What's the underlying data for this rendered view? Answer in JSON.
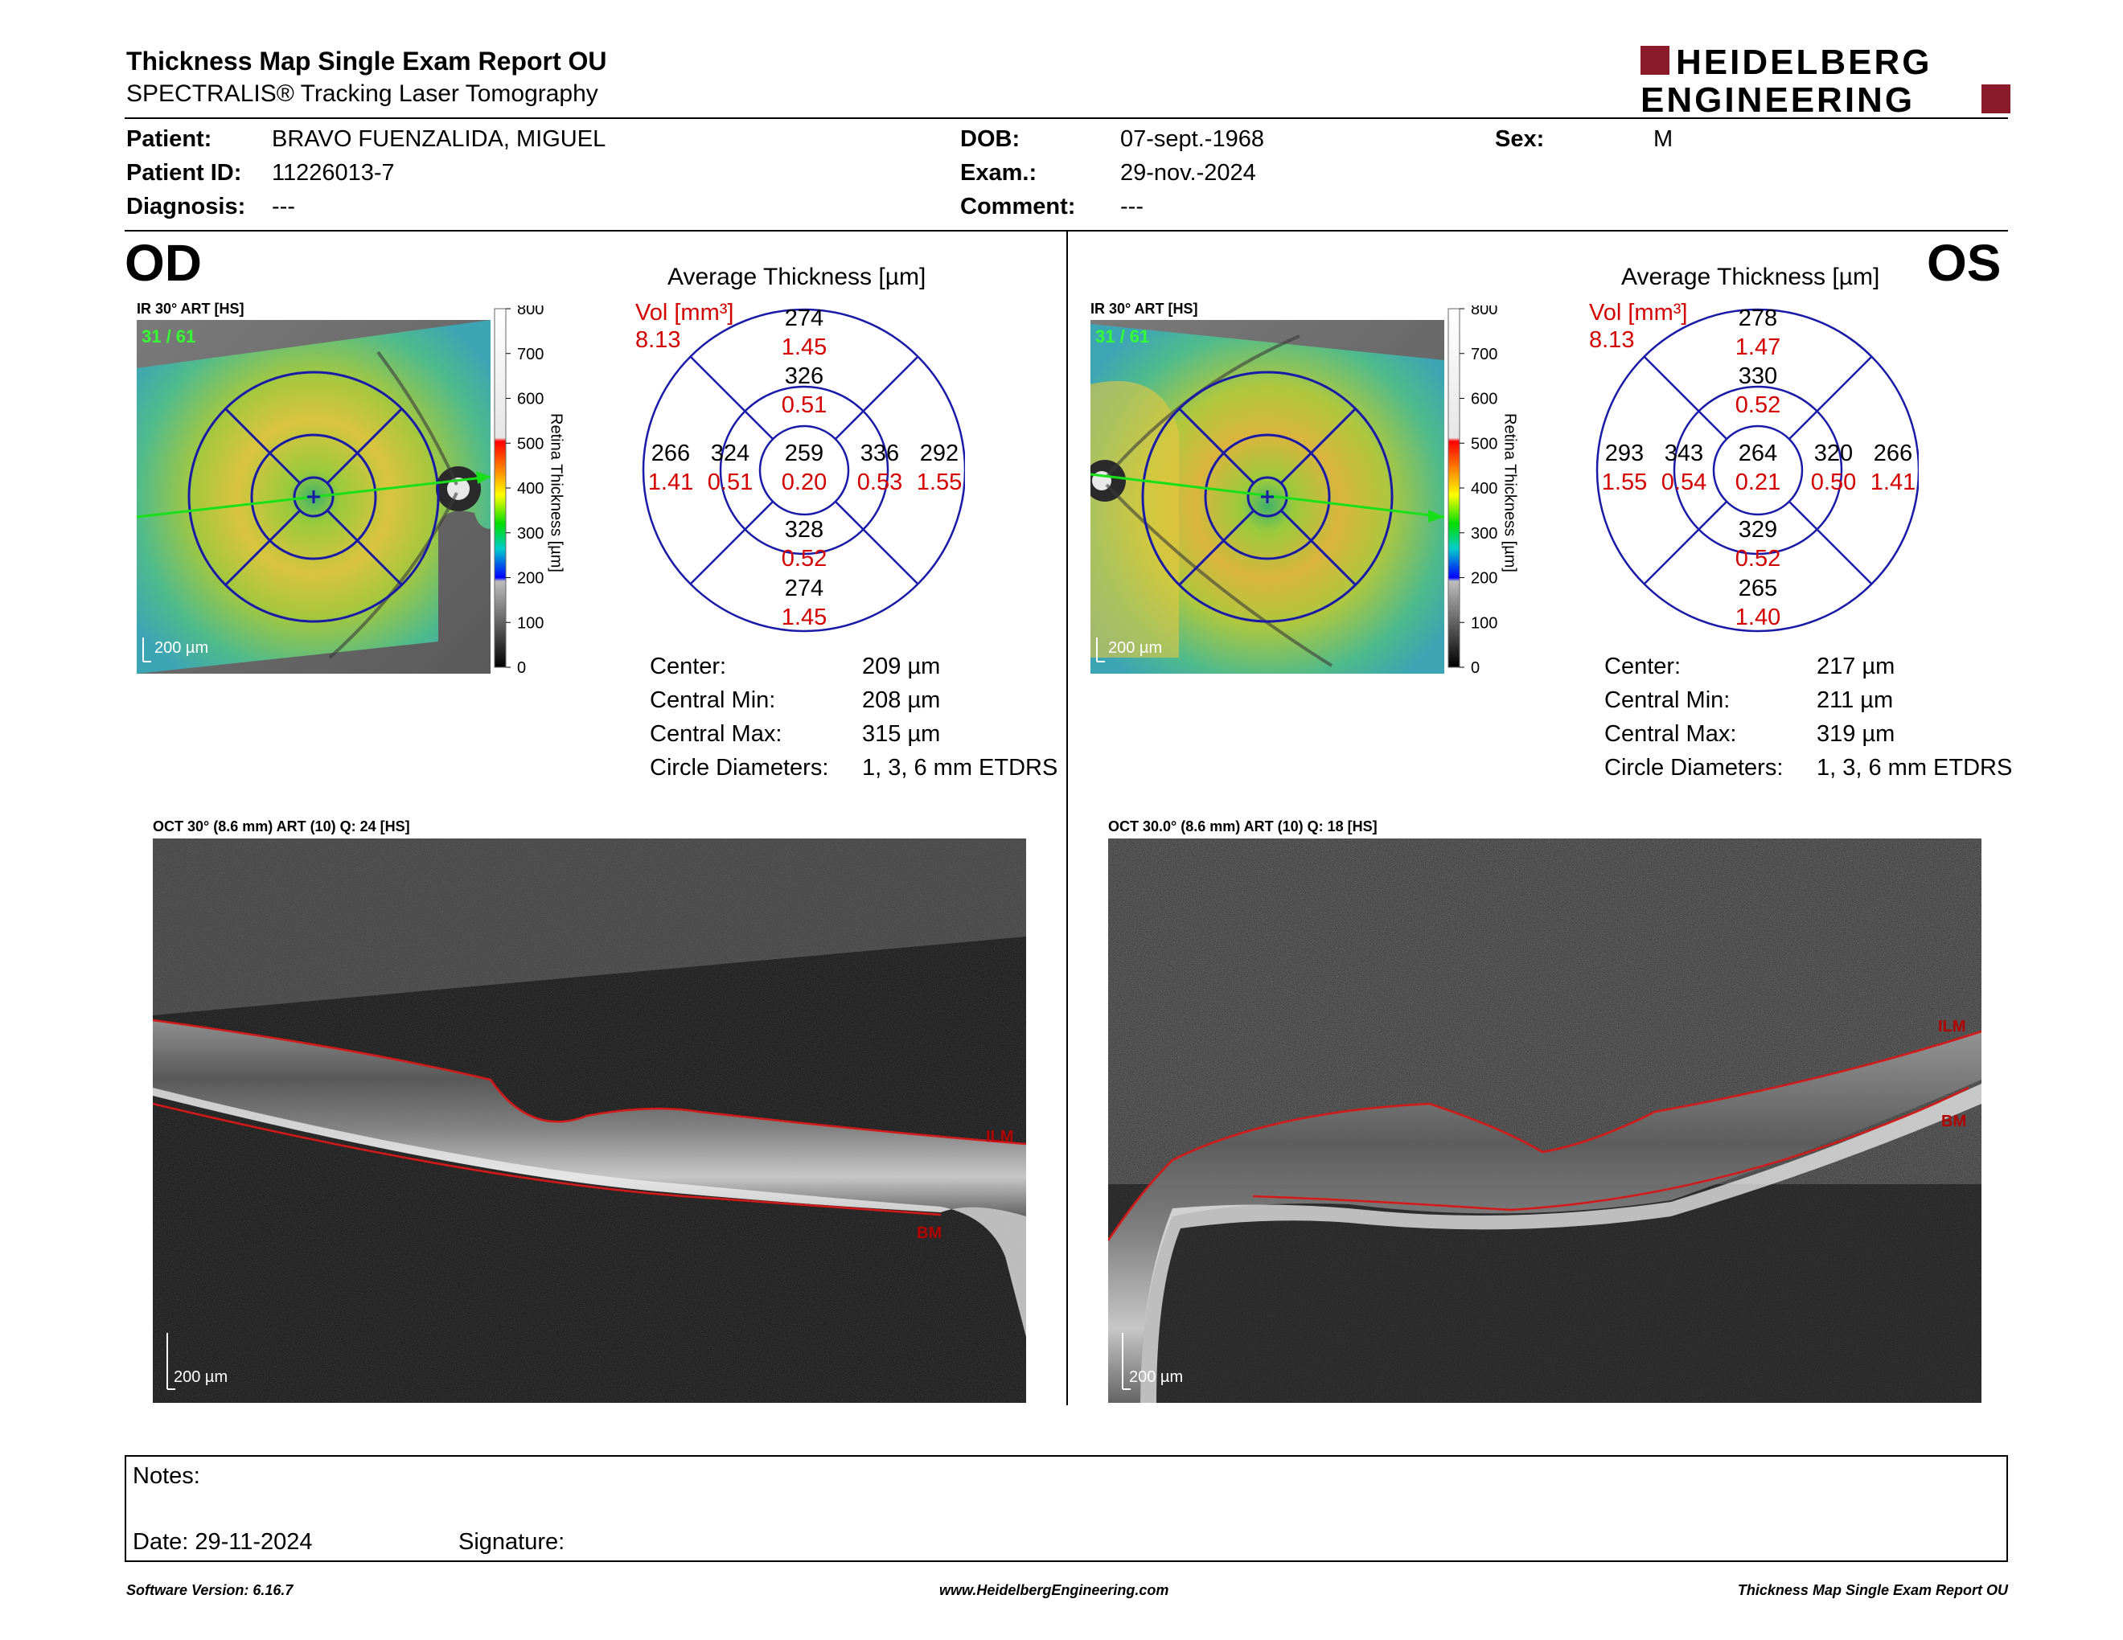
{
  "header": {
    "title": "Thickness Map Single Exam Report OU",
    "subtitle": "SPECTRALIS® Tracking Laser Tomography",
    "logo_line1": "HEIDELBERG",
    "logo_line2": "ENGINEERING",
    "brand_color": "#8b1a2b"
  },
  "patient": {
    "patient_label": "Patient:",
    "patient_value": "BRAVO FUENZALIDA, MIGUEL",
    "id_label": "Patient ID:",
    "id_value": "11226013-7",
    "diag_label": "Diagnosis:",
    "diag_value": "---",
    "dob_label": "DOB:",
    "dob_value": "07-sept.-1968",
    "exam_label": "Exam.:",
    "exam_value": "29-nov.-2024",
    "comment_label": "Comment:",
    "comment_value": "---",
    "sex_label": "Sex:",
    "sex_value": "M"
  },
  "colorbar": {
    "ticks": [
      "800",
      "700",
      "600",
      "500",
      "400",
      "300",
      "200",
      "100",
      "0"
    ],
    "axis_label": "Retina  Thickness [µm]"
  },
  "od": {
    "eye": "OD",
    "ir_label": "IR 30° ART [HS]",
    "ir_counter": "31 / 61",
    "ir_scale": "200 µm",
    "avg_title": "Average Thickness [µm]",
    "vol_label": "Vol [mm³]",
    "vol_value": "8.13",
    "etdrs": {
      "outer_sup": {
        "t": "274",
        "v": "1.45"
      },
      "inner_sup": {
        "t": "326",
        "v": "0.51"
      },
      "outer_left": {
        "t": "266",
        "v": "1.41"
      },
      "inner_left": {
        "t": "324",
        "v": "0.51"
      },
      "center": {
        "t": "259",
        "v": "0.20"
      },
      "inner_right": {
        "t": "336",
        "v": "0.53"
      },
      "outer_right": {
        "t": "292",
        "v": "1.55"
      },
      "inner_inf": {
        "t": "328",
        "v": "0.52"
      },
      "outer_inf": {
        "t": "274",
        "v": "1.45"
      }
    },
    "stats": [
      {
        "label": "Center:",
        "value": "209 µm"
      },
      {
        "label": "Central Min:",
        "value": "208 µm"
      },
      {
        "label": "Central Max:",
        "value": "315 µm"
      },
      {
        "label": "Circle Diameters:",
        "value": "1, 3, 6 mm ETDRS"
      }
    ],
    "oct_label": "OCT 30° (8.6 mm) ART (10) Q: 24 [HS]",
    "oct_scale": "200 µm",
    "ilm": "ILM",
    "bm": "BM"
  },
  "os": {
    "eye": "OS",
    "ir_label": "IR 30° ART [HS]",
    "ir_counter": "31 / 61",
    "ir_scale": "200 µm",
    "avg_title": "Average Thickness [µm]",
    "vol_label": "Vol [mm³]",
    "vol_value": "8.13",
    "etdrs": {
      "outer_sup": {
        "t": "278",
        "v": "1.47"
      },
      "inner_sup": {
        "t": "330",
        "v": "0.52"
      },
      "outer_left": {
        "t": "293",
        "v": "1.55"
      },
      "inner_left": {
        "t": "343",
        "v": "0.54"
      },
      "center": {
        "t": "264",
        "v": "0.21"
      },
      "inner_right": {
        "t": "320",
        "v": "0.50"
      },
      "outer_right": {
        "t": "266",
        "v": "1.41"
      },
      "inner_inf": {
        "t": "329",
        "v": "0.52"
      },
      "outer_inf": {
        "t": "265",
        "v": "1.40"
      }
    },
    "stats": [
      {
        "label": "Center:",
        "value": "217 µm"
      },
      {
        "label": "Central Min:",
        "value": "211 µm"
      },
      {
        "label": "Central Max:",
        "value": "319 µm"
      },
      {
        "label": "Circle Diameters:",
        "value": "1, 3, 6 mm ETDRS"
      }
    ],
    "oct_label": "OCT 30.0° (8.6 mm) ART (10) Q: 18 [HS]",
    "oct_scale": "200 µm",
    "ilm": "ILM",
    "bm": "BM"
  },
  "notes": {
    "notes_label": "Notes:",
    "date_label": "Date: 29-11-2024",
    "signature_label": "Signature:"
  },
  "footer": {
    "software": "Software Version: 6.16.7",
    "url": "www.HeidelbergEngineering.com",
    "report": "Thickness Map Single Exam Report OU"
  }
}
